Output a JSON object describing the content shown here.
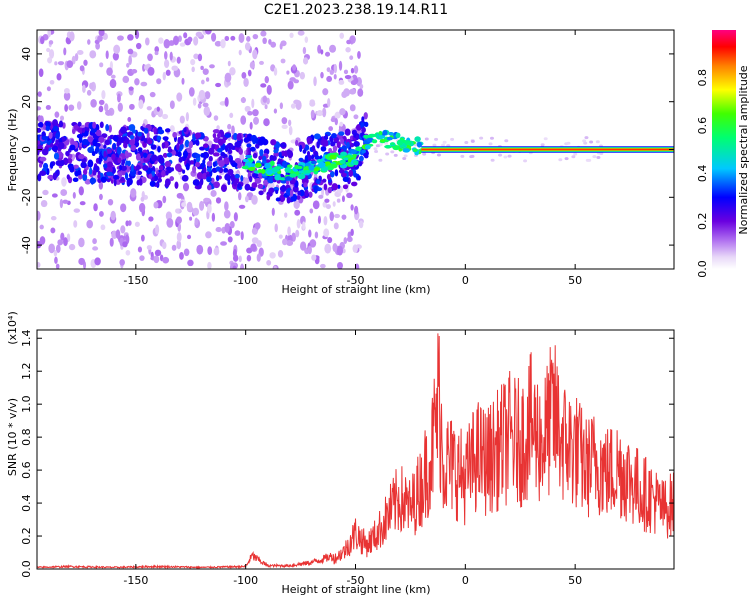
{
  "figure": {
    "title": "C2E1.2023.238.19.14.R11"
  },
  "chart_data": [
    {
      "type": "heatmap",
      "xlabel": "Height of straight line (km)",
      "ylabel": "Frequency (Hz)",
      "xlim": [
        -195,
        95
      ],
      "ylim": [
        -50,
        50
      ],
      "x_ticks": [
        -150,
        -100,
        -50,
        0,
        50
      ],
      "y_ticks": [
        -40,
        -20,
        0,
        20,
        40
      ],
      "x_tick_labels": [
        "-150",
        "-100",
        "-50",
        "0",
        "50"
      ],
      "y_tick_labels": [
        "-40",
        "-20",
        "0",
        "20",
        "40"
      ],
      "colorbar": {
        "label": "Normalized spectral amplitude",
        "range": [
          0,
          1
        ],
        "ticks": [
          0,
          0.2,
          0.4,
          0.6,
          0.8
        ],
        "tick_labels": [
          "0.0",
          "0.2",
          "0.4",
          "0.6",
          "0.8"
        ]
      },
      "ridge": {
        "x": [
          -195,
          -100,
          -90,
          -80,
          -70,
          -60,
          -50,
          -45,
          -40,
          -30,
          -20,
          -10,
          0,
          10,
          20,
          95
        ],
        "y": [
          0,
          -5,
          -8,
          -10,
          -7,
          -5,
          -3,
          3,
          5,
          3,
          1,
          0,
          0,
          -1,
          0,
          0
        ]
      }
    },
    {
      "type": "line",
      "xlabel": "Height of straight line (km)",
      "ylabel": "SNR (10 * v/v)",
      "y_multiplier_label": "(x10⁴)",
      "xlim": [
        -195,
        95
      ],
      "ylim": [
        0,
        1.45
      ],
      "x_ticks": [
        -150,
        -100,
        -50,
        0,
        50
      ],
      "y_ticks": [
        0,
        0.2,
        0.4,
        0.6,
        0.8,
        1.0,
        1.2,
        1.4
      ],
      "x_tick_labels": [
        "-150",
        "-100",
        "-50",
        "0",
        "50"
      ],
      "y_tick_labels": [
        "0.0",
        "0.2",
        "0.4",
        "0.6",
        "0.8",
        "1.0",
        "1.2",
        "1.4"
      ],
      "series": [
        {
          "color": "#e83333",
          "x": [
            -195,
            -180,
            -160,
            -140,
            -120,
            -100,
            -97,
            -90,
            -80,
            -70,
            -60,
            -55,
            -50,
            -45,
            -40,
            -35,
            -30,
            -25,
            -20,
            -15,
            -12,
            -10,
            -5,
            0,
            5,
            10,
            15,
            20,
            25,
            30,
            35,
            40,
            45,
            50,
            55,
            60,
            65,
            70,
            75,
            80,
            85,
            90,
            95
          ],
          "y": [
            0.01,
            0.015,
            0.01,
            0.015,
            0.01,
            0.015,
            0.08,
            0.02,
            0.02,
            0.04,
            0.08,
            0.15,
            0.3,
            0.2,
            0.3,
            0.45,
            0.6,
            0.5,
            0.7,
            1.0,
            1.45,
            0.9,
            0.85,
            0.75,
            0.95,
            0.9,
            1.0,
            1.1,
            1.05,
            1.2,
            1.05,
            1.3,
            1.05,
            1.0,
            0.85,
            0.9,
            0.8,
            0.85,
            0.75,
            0.65,
            0.6,
            0.5,
            0.55
          ]
        }
      ]
    }
  ]
}
